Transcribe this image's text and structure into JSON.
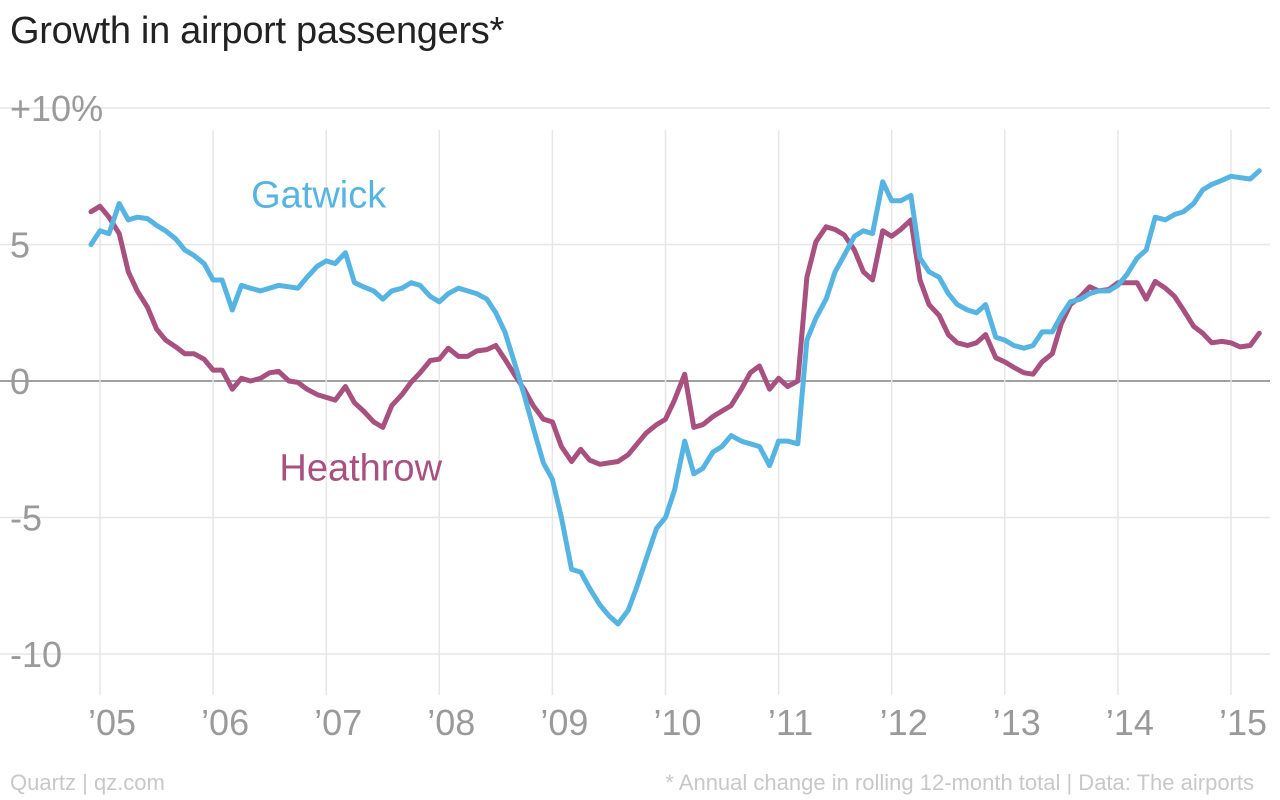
{
  "title": "Growth in airport passengers*",
  "footer": {
    "source_left": "Quartz | qz.com",
    "note_right": "* Annual change in rolling 12-month total | Data: The airports"
  },
  "colors": {
    "gatwick": "#56b4e3",
    "heathrow": "#a8507f",
    "grid": "#e6e6e6",
    "zero_line": "#a0a0a0",
    "tick_text": "#9a9a9a"
  },
  "chart_data": {
    "type": "line",
    "title": "Growth in airport passengers*",
    "xlabel": "",
    "ylabel": "",
    "ylim": [
      -11,
      10
    ],
    "xlim": [
      2004.9,
      2015.3
    ],
    "grid": true,
    "y_ticks": [
      {
        "value": 10,
        "label": "+10%"
      },
      {
        "value": 5,
        "label": "5"
      },
      {
        "value": 0,
        "label": "0"
      },
      {
        "value": -5,
        "label": "-5"
      },
      {
        "value": -10,
        "label": "-10"
      }
    ],
    "x_ticks": [
      {
        "value": 2005,
        "label": "’05"
      },
      {
        "value": 2006,
        "label": "’06"
      },
      {
        "value": 2007,
        "label": "’07"
      },
      {
        "value": 2008,
        "label": "’08"
      },
      {
        "value": 2009,
        "label": "’09"
      },
      {
        "value": 2010,
        "label": "’10"
      },
      {
        "value": 2011,
        "label": "’11"
      },
      {
        "value": 2012,
        "label": "’12"
      },
      {
        "value": 2013,
        "label": "’13"
      },
      {
        "value": 2014,
        "label": "’14"
      },
      {
        "value": 2015,
        "label": "’15"
      }
    ],
    "series": [
      {
        "name": "Gatwick",
        "color": "#56b4e3",
        "points": [
          [
            2004.92,
            5.0
          ],
          [
            2005.0,
            5.5
          ],
          [
            2005.08,
            5.4
          ],
          [
            2005.17,
            6.5
          ],
          [
            2005.25,
            5.9
          ],
          [
            2005.33,
            6.0
          ],
          [
            2005.42,
            5.95
          ],
          [
            2005.5,
            5.7
          ],
          [
            2005.58,
            5.5
          ],
          [
            2005.67,
            5.2
          ],
          [
            2005.75,
            4.8
          ],
          [
            2005.83,
            4.6
          ],
          [
            2005.92,
            4.3
          ],
          [
            2006.0,
            3.7
          ],
          [
            2006.08,
            3.7
          ],
          [
            2006.17,
            2.6
          ],
          [
            2006.25,
            3.5
          ],
          [
            2006.33,
            3.4
          ],
          [
            2006.42,
            3.3
          ],
          [
            2006.5,
            3.4
          ],
          [
            2006.58,
            3.5
          ],
          [
            2006.67,
            3.45
          ],
          [
            2006.75,
            3.4
          ],
          [
            2006.83,
            3.8
          ],
          [
            2006.92,
            4.2
          ],
          [
            2007.0,
            4.4
          ],
          [
            2007.08,
            4.3
          ],
          [
            2007.17,
            4.7
          ],
          [
            2007.25,
            3.6
          ],
          [
            2007.33,
            3.45
          ],
          [
            2007.42,
            3.3
          ],
          [
            2007.5,
            3.0
          ],
          [
            2007.58,
            3.3
          ],
          [
            2007.67,
            3.4
          ],
          [
            2007.75,
            3.6
          ],
          [
            2007.83,
            3.5
          ],
          [
            2007.92,
            3.1
          ],
          [
            2008.0,
            2.9
          ],
          [
            2008.08,
            3.2
          ],
          [
            2008.17,
            3.4
          ],
          [
            2008.25,
            3.3
          ],
          [
            2008.33,
            3.2
          ],
          [
            2008.42,
            3.0
          ],
          [
            2008.5,
            2.5
          ],
          [
            2008.58,
            1.8
          ],
          [
            2008.67,
            0.6
          ],
          [
            2008.75,
            -0.5
          ],
          [
            2008.83,
            -1.7
          ],
          [
            2008.92,
            -3.0
          ],
          [
            2009.0,
            -3.6
          ],
          [
            2009.08,
            -5.0
          ],
          [
            2009.17,
            -6.9
          ],
          [
            2009.25,
            -7.0
          ],
          [
            2009.33,
            -7.6
          ],
          [
            2009.42,
            -8.2
          ],
          [
            2009.5,
            -8.6
          ],
          [
            2009.58,
            -8.9
          ],
          [
            2009.67,
            -8.4
          ],
          [
            2009.75,
            -7.5
          ],
          [
            2009.83,
            -6.5
          ],
          [
            2009.92,
            -5.4
          ],
          [
            2010.0,
            -5.0
          ],
          [
            2010.08,
            -4.0
          ],
          [
            2010.17,
            -2.2
          ],
          [
            2010.25,
            -3.4
          ],
          [
            2010.33,
            -3.2
          ],
          [
            2010.42,
            -2.6
          ],
          [
            2010.5,
            -2.4
          ],
          [
            2010.58,
            -2.0
          ],
          [
            2010.67,
            -2.2
          ],
          [
            2010.75,
            -2.3
          ],
          [
            2010.83,
            -2.4
          ],
          [
            2010.92,
            -3.1
          ],
          [
            2011.0,
            -2.2
          ],
          [
            2011.08,
            -2.2
          ],
          [
            2011.17,
            -2.3
          ],
          [
            2011.25,
            1.5
          ],
          [
            2011.33,
            2.3
          ],
          [
            2011.42,
            3.0
          ],
          [
            2011.5,
            4.0
          ],
          [
            2011.58,
            4.6
          ],
          [
            2011.67,
            5.3
          ],
          [
            2011.75,
            5.5
          ],
          [
            2011.83,
            5.4
          ],
          [
            2011.92,
            7.3
          ],
          [
            2012.0,
            6.6
          ],
          [
            2012.08,
            6.6
          ],
          [
            2012.17,
            6.8
          ],
          [
            2012.25,
            4.5
          ],
          [
            2012.33,
            4.0
          ],
          [
            2012.42,
            3.8
          ],
          [
            2012.5,
            3.2
          ],
          [
            2012.58,
            2.8
          ],
          [
            2012.67,
            2.6
          ],
          [
            2012.75,
            2.5
          ],
          [
            2012.83,
            2.8
          ],
          [
            2012.92,
            1.6
          ],
          [
            2013.0,
            1.5
          ],
          [
            2013.08,
            1.3
          ],
          [
            2013.17,
            1.2
          ],
          [
            2013.25,
            1.3
          ],
          [
            2013.33,
            1.8
          ],
          [
            2013.42,
            1.8
          ],
          [
            2013.5,
            2.4
          ],
          [
            2013.58,
            2.9
          ],
          [
            2013.67,
            3.0
          ],
          [
            2013.75,
            3.2
          ],
          [
            2013.83,
            3.3
          ],
          [
            2013.92,
            3.3
          ],
          [
            2014.0,
            3.5
          ],
          [
            2014.08,
            3.9
          ],
          [
            2014.17,
            4.5
          ],
          [
            2014.25,
            4.8
          ],
          [
            2014.33,
            6.0
          ],
          [
            2014.42,
            5.9
          ],
          [
            2014.5,
            6.1
          ],
          [
            2014.58,
            6.2
          ],
          [
            2014.67,
            6.5
          ],
          [
            2014.75,
            7.0
          ],
          [
            2014.83,
            7.2
          ],
          [
            2014.92,
            7.35
          ],
          [
            2015.0,
            7.5
          ],
          [
            2015.08,
            7.45
          ],
          [
            2015.17,
            7.4
          ],
          [
            2015.25,
            7.7
          ]
        ]
      },
      {
        "name": "Heathrow",
        "color": "#a8507f",
        "points": [
          [
            2004.92,
            6.2
          ],
          [
            2005.0,
            6.4
          ],
          [
            2005.08,
            6.0
          ],
          [
            2005.17,
            5.4
          ],
          [
            2005.25,
            4.0
          ],
          [
            2005.33,
            3.3
          ],
          [
            2005.42,
            2.7
          ],
          [
            2005.5,
            1.9
          ],
          [
            2005.58,
            1.5
          ],
          [
            2005.67,
            1.25
          ],
          [
            2005.75,
            1.0
          ],
          [
            2005.83,
            1.0
          ],
          [
            2005.92,
            0.8
          ],
          [
            2006.0,
            0.4
          ],
          [
            2006.08,
            0.4
          ],
          [
            2006.17,
            -0.3
          ],
          [
            2006.25,
            0.1
          ],
          [
            2006.33,
            0.0
          ],
          [
            2006.42,
            0.1
          ],
          [
            2006.5,
            0.3
          ],
          [
            2006.58,
            0.35
          ],
          [
            2006.67,
            0.0
          ],
          [
            2006.75,
            -0.05
          ],
          [
            2006.83,
            -0.3
          ],
          [
            2006.92,
            -0.5
          ],
          [
            2007.0,
            -0.6
          ],
          [
            2007.08,
            -0.7
          ],
          [
            2007.17,
            -0.2
          ],
          [
            2007.25,
            -0.8
          ],
          [
            2007.33,
            -1.1
          ],
          [
            2007.42,
            -1.5
          ],
          [
            2007.5,
            -1.7
          ],
          [
            2007.58,
            -0.9
          ],
          [
            2007.67,
            -0.5
          ],
          [
            2007.75,
            -0.05
          ],
          [
            2007.83,
            0.3
          ],
          [
            2007.92,
            0.75
          ],
          [
            2008.0,
            0.8
          ],
          [
            2008.08,
            1.2
          ],
          [
            2008.17,
            0.9
          ],
          [
            2008.25,
            0.9
          ],
          [
            2008.33,
            1.1
          ],
          [
            2008.42,
            1.15
          ],
          [
            2008.5,
            1.3
          ],
          [
            2008.58,
            0.8
          ],
          [
            2008.67,
            0.2
          ],
          [
            2008.75,
            -0.3
          ],
          [
            2008.83,
            -0.9
          ],
          [
            2008.92,
            -1.4
          ],
          [
            2009.0,
            -1.5
          ],
          [
            2009.08,
            -2.4
          ],
          [
            2009.17,
            -2.95
          ],
          [
            2009.25,
            -2.5
          ],
          [
            2009.33,
            -2.9
          ],
          [
            2009.42,
            -3.05
          ],
          [
            2009.5,
            -3.0
          ],
          [
            2009.58,
            -2.95
          ],
          [
            2009.67,
            -2.7
          ],
          [
            2009.75,
            -2.3
          ],
          [
            2009.83,
            -1.9
          ],
          [
            2009.92,
            -1.6
          ],
          [
            2010.0,
            -1.4
          ],
          [
            2010.08,
            -0.7
          ],
          [
            2010.17,
            0.25
          ],
          [
            2010.25,
            -1.7
          ],
          [
            2010.33,
            -1.6
          ],
          [
            2010.42,
            -1.3
          ],
          [
            2010.5,
            -1.1
          ],
          [
            2010.58,
            -0.9
          ],
          [
            2010.67,
            -0.3
          ],
          [
            2010.75,
            0.3
          ],
          [
            2010.83,
            0.55
          ],
          [
            2010.92,
            -0.3
          ],
          [
            2011.0,
            0.1
          ],
          [
            2011.08,
            -0.2
          ],
          [
            2011.17,
            0.0
          ],
          [
            2011.25,
            3.8
          ],
          [
            2011.33,
            5.1
          ],
          [
            2011.42,
            5.65
          ],
          [
            2011.5,
            5.55
          ],
          [
            2011.58,
            5.35
          ],
          [
            2011.67,
            4.8
          ],
          [
            2011.75,
            4.0
          ],
          [
            2011.83,
            3.7
          ],
          [
            2011.92,
            5.5
          ],
          [
            2012.0,
            5.3
          ],
          [
            2012.08,
            5.55
          ],
          [
            2012.17,
            5.9
          ],
          [
            2012.25,
            3.7
          ],
          [
            2012.33,
            2.8
          ],
          [
            2012.42,
            2.4
          ],
          [
            2012.5,
            1.7
          ],
          [
            2012.58,
            1.4
          ],
          [
            2012.67,
            1.3
          ],
          [
            2012.75,
            1.4
          ],
          [
            2012.83,
            1.7
          ],
          [
            2012.92,
            0.85
          ],
          [
            2013.0,
            0.7
          ],
          [
            2013.08,
            0.5
          ],
          [
            2013.17,
            0.3
          ],
          [
            2013.25,
            0.25
          ],
          [
            2013.33,
            0.7
          ],
          [
            2013.42,
            1.0
          ],
          [
            2013.5,
            2.1
          ],
          [
            2013.58,
            2.8
          ],
          [
            2013.67,
            3.1
          ],
          [
            2013.75,
            3.45
          ],
          [
            2013.83,
            3.3
          ],
          [
            2013.92,
            3.35
          ],
          [
            2014.0,
            3.6
          ],
          [
            2014.08,
            3.6
          ],
          [
            2014.17,
            3.6
          ],
          [
            2014.25,
            3.0
          ],
          [
            2014.33,
            3.65
          ],
          [
            2014.42,
            3.4
          ],
          [
            2014.5,
            3.1
          ],
          [
            2014.58,
            2.6
          ],
          [
            2014.67,
            2.0
          ],
          [
            2014.75,
            1.75
          ],
          [
            2014.83,
            1.4
          ],
          [
            2014.92,
            1.45
          ],
          [
            2015.0,
            1.4
          ],
          [
            2015.08,
            1.25
          ],
          [
            2015.17,
            1.3
          ],
          [
            2015.25,
            1.75
          ]
        ]
      }
    ],
    "annotations": [
      {
        "text": "Gatwick",
        "series": "Gatwick",
        "at": [
          2006.0,
          6.8
        ]
      },
      {
        "text": "Heathrow",
        "series": "Heathrow",
        "at": [
          2006.25,
          -3.2
        ]
      }
    ]
  }
}
